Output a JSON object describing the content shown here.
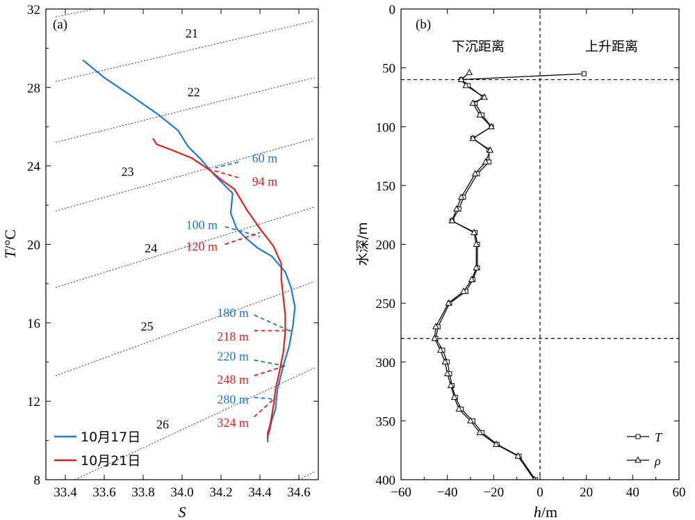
{
  "chart_data": [
    {
      "type": "line",
      "panel_label": "(a)",
      "xlabel": "S",
      "ylabel_var": "T",
      "ylabel_unit": "/°C",
      "xlim": [
        33.3,
        34.7
      ],
      "ylim": [
        8,
        32
      ],
      "xticks": [
        "33.4",
        "33.6",
        "33.8",
        "34.0",
        "34.2",
        "34.4",
        "34.6"
      ],
      "yticks": [
        "8",
        "12",
        "16",
        "20",
        "24",
        "28",
        "32"
      ],
      "isopycnals": [
        {
          "label": "21",
          "s0": 33.35,
          "t0": 28.3,
          "s1": 34.68,
          "t1": 31.4,
          "label_at": [
            34.05,
            30.55
          ]
        },
        {
          "label": "22",
          "s0": 33.35,
          "t0": 25.2,
          "s1": 34.68,
          "t1": 28.5,
          "label_at": [
            34.06,
            27.55
          ]
        },
        {
          "label": "23",
          "s0": 33.35,
          "t0": 21.7,
          "s1": 34.68,
          "t1": 25.4,
          "label_at": [
            33.72,
            23.5
          ]
        },
        {
          "label": "24",
          "s0": 33.35,
          "t0": 17.8,
          "s1": 34.68,
          "t1": 21.9,
          "label_at": [
            33.84,
            19.6
          ]
        },
        {
          "label": "25",
          "s0": 33.35,
          "t0": 13.3,
          "s1": 34.68,
          "t1": 18.1,
          "label_at": [
            33.82,
            15.6
          ]
        },
        {
          "label": "26",
          "s0": 33.45,
          "t0": 8.0,
          "s1": 34.68,
          "t1": 13.7,
          "label_at": [
            33.9,
            10.6
          ]
        },
        {
          "label": "",
          "s0": 33.35,
          "t0": 31.6,
          "s1": 33.55,
          "t1": 32.0
        },
        {
          "label": "",
          "s0": 34.6,
          "t0": 8.0,
          "s1": 34.68,
          "t1": 8.4
        }
      ],
      "series": [
        {
          "name": "10月17日",
          "color": "#1f77e0",
          "s": [
            33.49,
            33.6,
            33.75,
            33.88,
            33.98,
            34.03,
            34.1,
            34.16,
            34.26,
            34.25,
            34.28,
            34.33,
            34.39,
            34.46,
            34.53,
            34.56,
            34.58,
            34.57,
            34.55,
            34.52,
            34.49,
            34.48,
            34.46,
            34.45,
            34.44,
            34.44
          ],
          "t": [
            29.4,
            28.5,
            27.5,
            26.6,
            25.8,
            25.0,
            24.3,
            23.6,
            22.6,
            21.6,
            20.8,
            20.3,
            19.8,
            19.4,
            18.6,
            17.8,
            16.8,
            15.9,
            14.8,
            13.8,
            12.6,
            11.6,
            11.0,
            10.5,
            10.2,
            9.9
          ]
        },
        {
          "name": "10月21日",
          "color": "#e0201e",
          "s": [
            33.85,
            33.87,
            33.95,
            34.05,
            34.14,
            34.2,
            34.27,
            34.33,
            34.4,
            34.47,
            34.51,
            34.51,
            34.52,
            34.53,
            34.53,
            34.52,
            34.5,
            34.48,
            34.47,
            34.46,
            34.45,
            34.44,
            34.44
          ],
          "t": [
            25.4,
            25.1,
            24.8,
            24.4,
            23.8,
            23.3,
            22.8,
            21.8,
            20.8,
            19.9,
            19.0,
            18.2,
            17.3,
            16.4,
            15.5,
            14.5,
            13.5,
            12.6,
            11.8,
            11.2,
            10.7,
            10.4,
            10.1
          ]
        }
      ],
      "annotations": [
        {
          "text": "60 m",
          "color": "#1f77e0",
          "label_at": [
            34.36,
            24.4
          ],
          "lx": [
            34.29,
            24.2
          ],
          "px": [
            34.17,
            23.9
          ]
        },
        {
          "text": "94 m",
          "color": "#e0201e",
          "label_at": [
            34.36,
            23.2
          ],
          "lx": [
            34.29,
            23.4
          ],
          "px": [
            34.15,
            23.8
          ]
        },
        {
          "text": "100 m",
          "color": "#1f77e0",
          "label_at": [
            34.02,
            21.0
          ],
          "lx": [
            34.22,
            20.9
          ],
          "px": [
            34.4,
            20.4
          ]
        },
        {
          "text": "120 m",
          "color": "#e0201e",
          "label_at": [
            34.02,
            19.9
          ],
          "lx": [
            34.22,
            20.0
          ],
          "px": [
            34.4,
            20.6
          ]
        },
        {
          "text": "180 m",
          "color": "#1f77e0",
          "label_at": [
            34.18,
            16.5
          ],
          "lx": [
            34.37,
            16.4
          ],
          "px": [
            34.55,
            15.6
          ]
        },
        {
          "text": "218 m",
          "color": "#e0201e",
          "label_at": [
            34.18,
            15.3
          ],
          "lx": [
            34.37,
            15.6
          ],
          "px": [
            34.56,
            15.6
          ]
        },
        {
          "text": "220 m",
          "color": "#1f77e0",
          "label_at": [
            34.18,
            14.3
          ],
          "lx": [
            34.37,
            14.1
          ],
          "px": [
            34.53,
            13.8
          ]
        },
        {
          "text": "248 m",
          "color": "#e0201e",
          "label_at": [
            34.18,
            13.1
          ],
          "lx": [
            34.37,
            13.3
          ],
          "px": [
            34.53,
            13.8
          ]
        },
        {
          "text": "280 m",
          "color": "#1f77e0",
          "label_at": [
            34.18,
            12.1
          ],
          "lx": [
            34.37,
            12.2
          ],
          "px": [
            34.48,
            12.1
          ]
        },
        {
          "text": "324 m",
          "color": "#e0201e",
          "label_at": [
            34.18,
            10.9
          ],
          "lx": [
            34.37,
            11.2
          ],
          "px": [
            34.47,
            12.1
          ]
        }
      ],
      "legend": {
        "position": "bottom-left",
        "entries": [
          "10月17日",
          "10月21日"
        ]
      }
    },
    {
      "type": "line",
      "panel_label": "(b)",
      "xlabel_var": "h",
      "xlabel_unit": "/m",
      "ylabel": "水深/m",
      "xlim": [
        -60,
        60
      ],
      "ylim": [
        400,
        0
      ],
      "xticks": [
        "−60",
        "−40",
        "−20",
        "0",
        "20",
        "40",
        "60"
      ],
      "yticks": [
        "0",
        "50",
        "100",
        "150",
        "200",
        "250",
        "300",
        "350",
        "400"
      ],
      "region_labels": [
        "下沉距离",
        "上升距离"
      ],
      "hlines": [
        60,
        280
      ],
      "vline": 0,
      "series": [
        {
          "name": "T",
          "marker": "square",
          "h": [
            19.0,
            -34.0,
            -31.0,
            -24.5,
            -28.0,
            -25.0,
            -21.0,
            -29.0,
            -22.0,
            -22.0,
            -27.0,
            -33.0,
            -35.0,
            -38.0,
            -28.0,
            -27.0,
            -27.0,
            -29.0,
            -32.0,
            -39.0,
            -44.0,
            -45.0,
            -42.0,
            -40.0,
            -39.0,
            -38.0,
            -36.5,
            -34.0,
            -29.0,
            -25.0,
            -18.5,
            -9.0,
            -2.0
          ],
          "depth": [
            55,
            60,
            65,
            75,
            80,
            90,
            100,
            110,
            120,
            130,
            140,
            160,
            170,
            180,
            190,
            200,
            220,
            230,
            240,
            250,
            270,
            280,
            290,
            300,
            310,
            320,
            330,
            340,
            350,
            360,
            370,
            380,
            400
          ]
        },
        {
          "name": "ρ",
          "marker": "triangle",
          "h": [
            -30.5,
            -34.0,
            -32.0,
            -24.0,
            -29.0,
            -26.0,
            -21.0,
            -29.0,
            -21.5,
            -23.5,
            -28.0,
            -34.0,
            -36.0,
            -38.0,
            -28.5,
            -27.5,
            -27.5,
            -29.5,
            -33.0,
            -39.5,
            -45.0,
            -45.5,
            -43.0,
            -41.0,
            -40.0,
            -38.5,
            -37.0,
            -35.0,
            -30.0,
            -26.0,
            -19.0,
            -9.5,
            -2.5
          ],
          "depth": [
            54,
            60,
            65,
            75,
            80,
            90,
            100,
            110,
            120,
            130,
            140,
            160,
            170,
            180,
            190,
            200,
            220,
            230,
            240,
            250,
            270,
            280,
            290,
            300,
            310,
            320,
            330,
            340,
            350,
            360,
            370,
            380,
            400
          ]
        }
      ],
      "legend": {
        "position": "bottom-right",
        "entries": [
          "T",
          "ρ"
        ]
      }
    }
  ]
}
